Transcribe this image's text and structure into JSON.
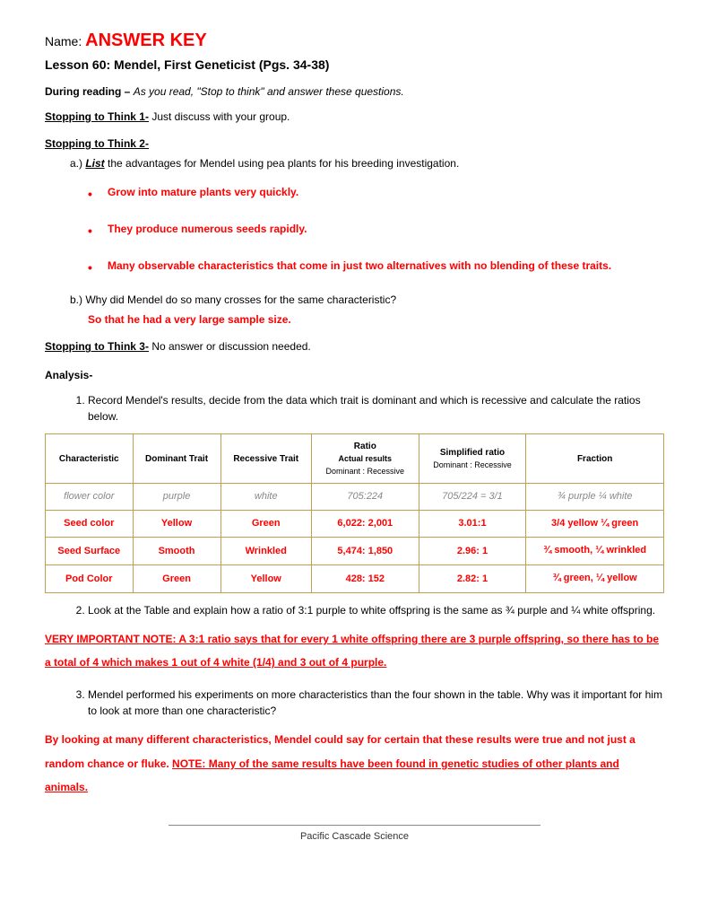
{
  "header": {
    "name_label": "Name:",
    "answer_key": "ANSWER KEY",
    "lesson_title": "Lesson 60:  Mendel, First Geneticist (Pgs. 34-38)"
  },
  "during": {
    "label": "During reading – ",
    "instruction": "As you read, \"Stop to think\" and answer these questions."
  },
  "think1": {
    "head": "Stopping to Think 1-",
    "text": " Just discuss with your group."
  },
  "think2": {
    "head": "Stopping to Think 2-",
    "qa_prefix": "a.)  ",
    "list_word": "List",
    "qa_text": " the advantages for Mendel using pea plants for his breeding investigation.",
    "bullets": [
      "Grow into mature plants very quickly.",
      "They produce numerous seeds rapidly.",
      "Many observable characteristics that come in just two alternatives with no blending of these traits."
    ],
    "qb": "b.)  Why did Mendel do so many crosses for the same characteristic?",
    "qb_answer": "So that he had a very large sample size."
  },
  "think3": {
    "head": "Stopping to Think 3-",
    "text": "  No answer or discussion needed."
  },
  "analysis": {
    "head": "Analysis-",
    "q1": "Record Mendel's results, decide from the data which trait is dominant and which is recessive and calculate the ratios below.",
    "q2": "Look at the Table and explain how a ratio of 3:1 purple to white offspring is the same as ¾ purple and ¼ white offspring.",
    "q2_answer": "VERY IMPORTANT NOTE:  A 3:1 ratio says that for every 1 white offspring there are 3 purple offspring, so there has to be a total of 4 which makes 1 out of 4 white (1/4) and 3 out of 4 purple.",
    "q3": "Mendel performed his experiments on more characteristics than the four shown in the table. Why was it important for him to look at more than one characteristic?",
    "q3_answer_pre": "By looking at many different characteristics, Mendel could say for certain that these results were true and not just a random chance or fluke.  ",
    "q3_note": "NOTE:  Many of the same results have been found in genetic studies of other plants and animals."
  },
  "table": {
    "headers": {
      "col1": "Characteristic",
      "col2": "Dominant Trait",
      "col3": "Recessive Trait",
      "col4": "Ratio",
      "col4_sub1": "Actual results",
      "col4_sub2": "Dominant : Recessive",
      "col5": "Simplified ratio",
      "col5_sub": "Dominant : Recessive",
      "col6": "Fraction"
    },
    "example": {
      "characteristic": "flower color",
      "dominant": "purple",
      "recessive": "white",
      "ratio": "705:224",
      "simplified": "705/224 = 3/1",
      "fraction": "¾ purple  ¼ white"
    },
    "rows": [
      {
        "characteristic": "Seed color",
        "dominant": "Yellow",
        "recessive": "Green",
        "ratio": "6,022: 2,001",
        "simplified": "3.01:1",
        "fraction": "3/4 yellow ¼ green"
      },
      {
        "characteristic": "Seed Surface",
        "dominant": "Smooth",
        "recessive": "Wrinkled",
        "ratio": "5,474: 1,850",
        "simplified": "2.96: 1",
        "fraction": "¾ smooth, ¼ wrinkled"
      },
      {
        "characteristic": "Pod Color",
        "dominant": "Green",
        "recessive": "Yellow",
        "ratio": "428: 152",
        "simplified": "2.82: 1",
        "fraction": "¾ green, ¼ yellow"
      }
    ]
  },
  "footer": "Pacific Cascade Science",
  "style": {
    "answer_color": "#ff0000",
    "border_color": "#c0a050",
    "example_color": "#888888",
    "body_font_size": 12,
    "header_font_size": 20
  }
}
